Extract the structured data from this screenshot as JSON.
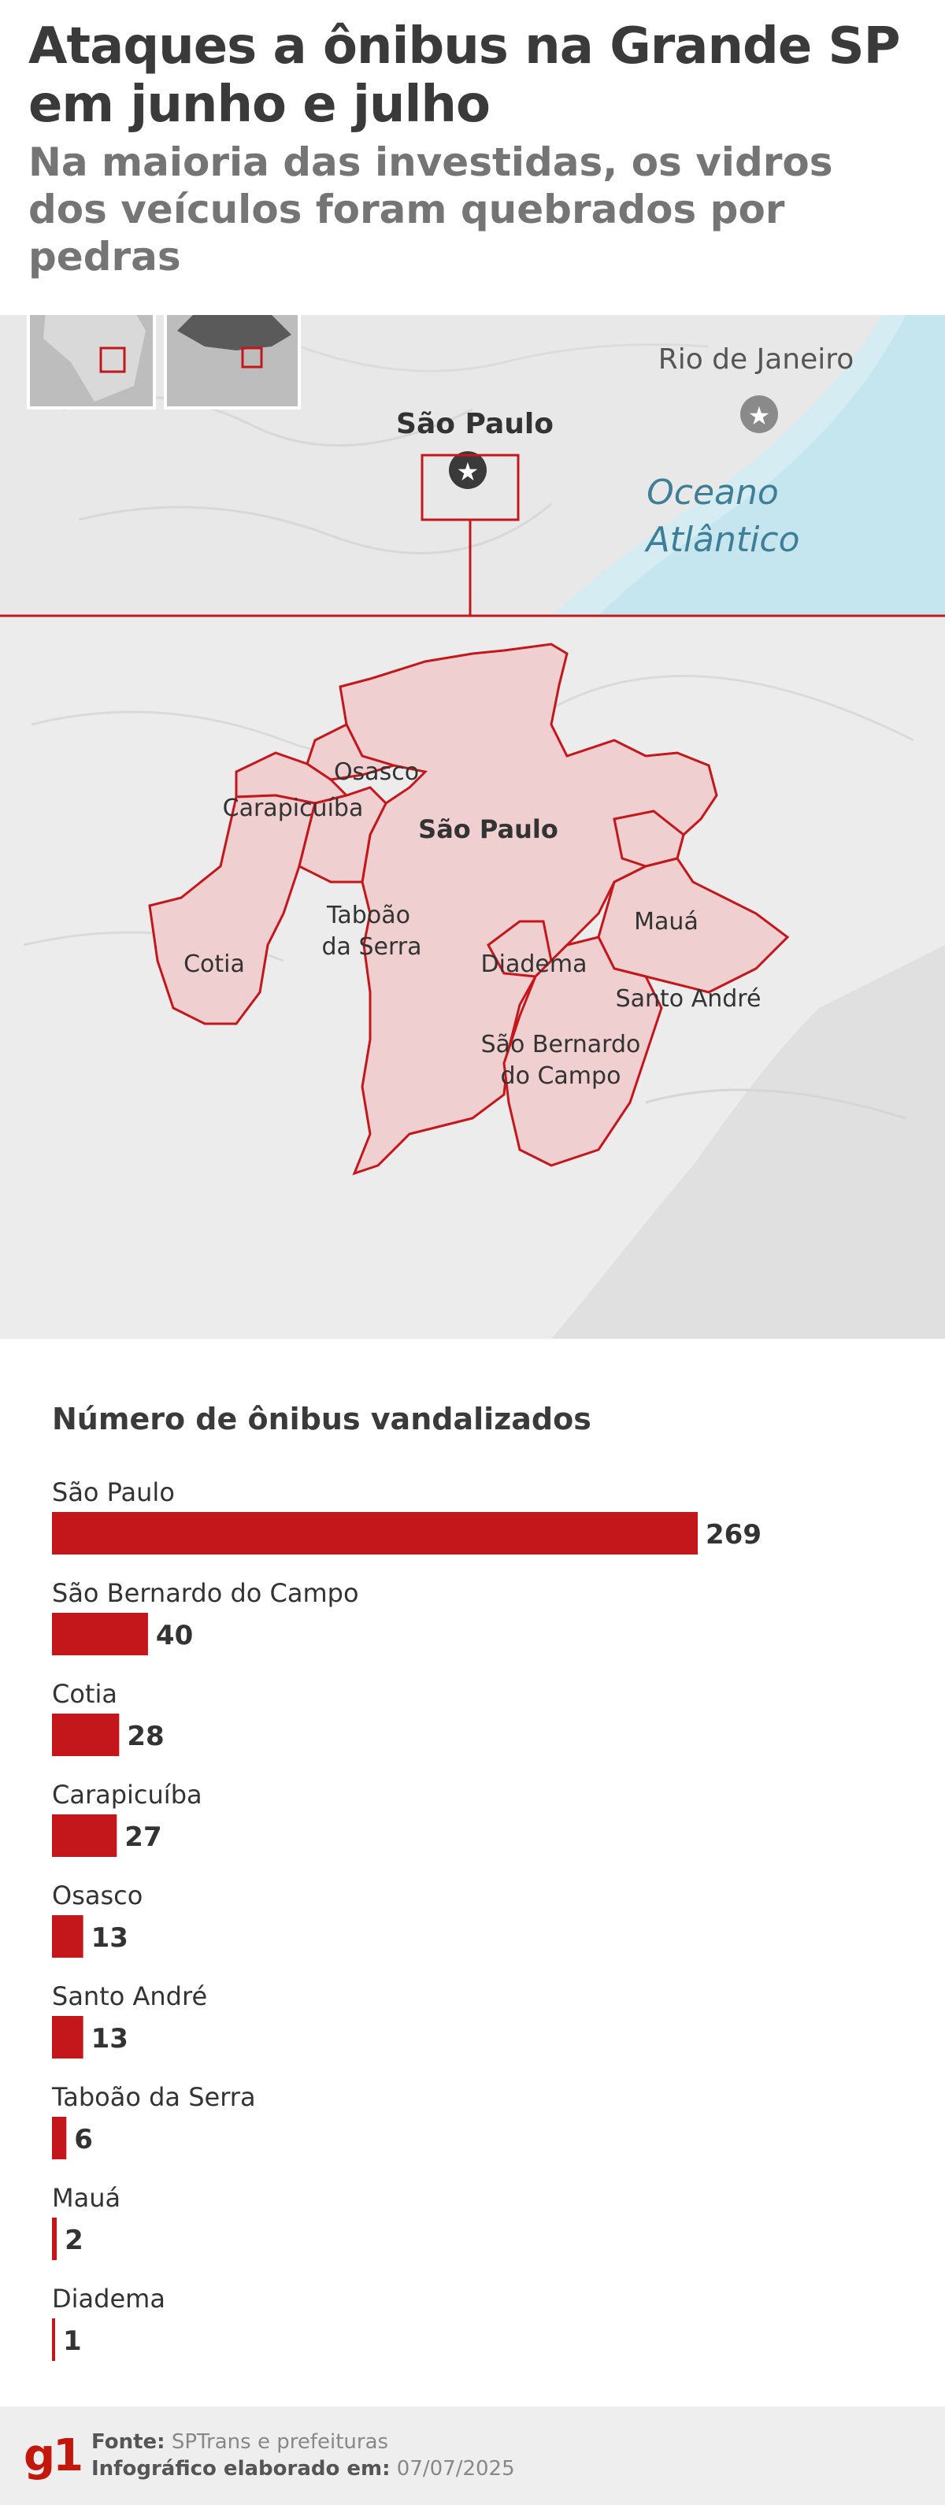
{
  "header": {
    "title": "Ataques a ônibus na Grande SP em junho e julho",
    "subtitle": "Na maioria das investidas, os vidros dos veículos foram quebrados por pedras"
  },
  "map": {
    "region_labels": {
      "sao_paulo_state_city": "São Paulo",
      "rio": "Rio de Janeiro",
      "ocean_line1": "Oceano",
      "ocean_line2": "Atlântico"
    },
    "city_labels": {
      "osasco": "Osasco",
      "carapicuiba": "Carapicuíba",
      "sao_paulo": "São Paulo",
      "taboao_1": "Taboão",
      "taboao_2": "da Serra",
      "cotia": "Cotia",
      "maua": "Mauá",
      "diadema": "Diadema",
      "santo_andre": "Santo André",
      "sbc_1": "São Bernardo",
      "sbc_2": "do Campo"
    },
    "colors": {
      "land": "#e9e9e9",
      "ocean": "#d4ecf2",
      "highlight_fill": "#efcfcf",
      "highlight_border": "#c4171c",
      "ocean_text": "#3e7f97"
    }
  },
  "chart_data": {
    "type": "bar",
    "title": "Número de ônibus vandalizados",
    "categories": [
      "São Paulo",
      "São Bernardo do Campo",
      "Cotia",
      "Carapicuíba",
      "Osasco",
      "Santo André",
      "Taboão da Serra",
      "Mauá",
      "Diadema"
    ],
    "values": [
      269,
      40,
      28,
      27,
      13,
      13,
      6,
      2,
      1
    ],
    "orientation": "horizontal",
    "bar_color": "#c4171c"
  },
  "footer": {
    "logo": "g1",
    "source_label": "Fonte:",
    "source_value": "SPTrans e prefeituras",
    "made_label": "Infográfico elaborado em:",
    "made_value": "07/07/2025"
  }
}
